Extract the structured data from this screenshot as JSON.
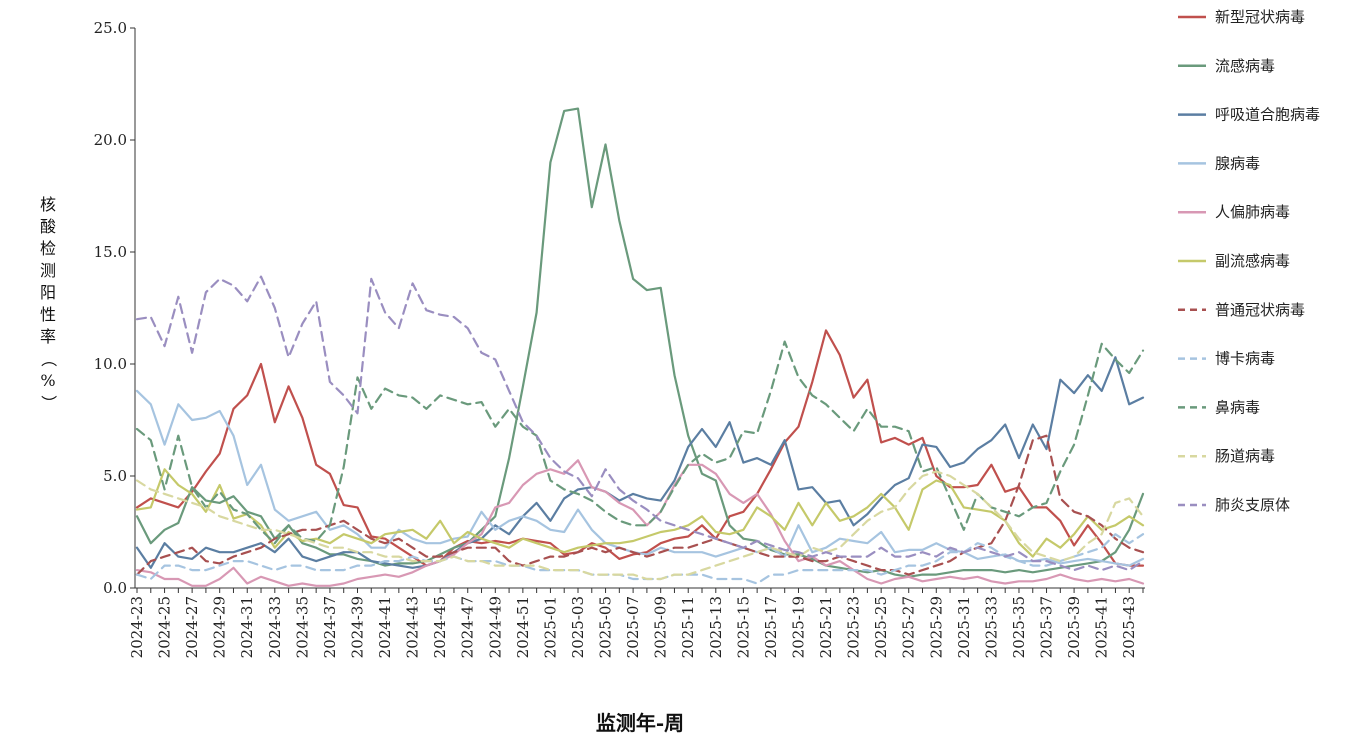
{
  "chart_data": {
    "type": "line",
    "xlabel": "监测年-周",
    "ylabel": "核酸检测阳性率（%）",
    "ylim": [
      0,
      25
    ],
    "yticks": [
      "0.0",
      "5.0",
      "10.0",
      "15.0",
      "20.0",
      "25.0"
    ],
    "legend_position": "right",
    "categories": [
      "2024-23",
      "2024-24",
      "2024-25",
      "2024-26",
      "2024-27",
      "2024-28",
      "2024-29",
      "2024-30",
      "2024-31",
      "2024-32",
      "2024-33",
      "2024-34",
      "2024-35",
      "2024-36",
      "2024-37",
      "2024-38",
      "2024-39",
      "2024-40",
      "2024-41",
      "2024-42",
      "2024-43",
      "2024-44",
      "2024-45",
      "2024-46",
      "2024-47",
      "2024-48",
      "2024-49",
      "2024-50",
      "2024-51",
      "2024-52",
      "2025-01",
      "2025-02",
      "2025-03",
      "2025-04",
      "2025-05",
      "2025-06",
      "2025-07",
      "2025-08",
      "2025-09",
      "2025-10",
      "2025-11",
      "2025-12",
      "2025-13",
      "2025-14",
      "2025-15",
      "2025-16",
      "2025-17",
      "2025-18",
      "2025-19",
      "2025-20",
      "2025-21",
      "2025-22",
      "2025-23",
      "2025-24",
      "2025-25",
      "2025-26",
      "2025-27",
      "2025-28",
      "2025-29",
      "2025-30",
      "2025-31",
      "2025-32",
      "2025-33",
      "2025-34",
      "2025-35",
      "2025-36",
      "2025-37",
      "2025-38",
      "2025-39",
      "2025-40",
      "2025-41",
      "2025-42",
      "2025-43",
      "2025-44"
    ],
    "xtick_labels": [
      "2024-23",
      "2024-25",
      "2024-27",
      "2024-29",
      "2024-31",
      "2024-33",
      "2024-35",
      "2024-37",
      "2024-39",
      "2024-41",
      "2024-43",
      "2024-45",
      "2024-47",
      "2024-49",
      "2024-51",
      "2025-01",
      "2025-03",
      "2025-05",
      "2025-07",
      "2025-09",
      "2025-11",
      "2025-13",
      "2025-15",
      "2025-17",
      "2025-19",
      "2025-21",
      "2025-23",
      "2025-25",
      "2025-27",
      "2025-29",
      "2025-31",
      "2025-33",
      "2025-35",
      "2025-37",
      "2025-39",
      "2025-41",
      "2025-43"
    ],
    "series": [
      {
        "name": "新型冠状病毒",
        "color": "#c0504d",
        "dash": false,
        "values": [
          3.6,
          4.0,
          3.8,
          3.6,
          4.3,
          5.2,
          6.0,
          8.0,
          8.6,
          10.0,
          7.4,
          9.0,
          7.6,
          5.5,
          5.1,
          3.7,
          3.6,
          2.3,
          2.2,
          1.8,
          1.4,
          1.0,
          1.2,
          1.8,
          2.1,
          2.0,
          2.1,
          2.0,
          2.2,
          2.1,
          2.0,
          1.5,
          1.6,
          2.0,
          1.8,
          1.3,
          1.5,
          1.6,
          2.0,
          2.2,
          2.3,
          2.8,
          2.2,
          3.2,
          3.4,
          4.2,
          5.3,
          6.5,
          7.2,
          9.2,
          11.5,
          10.4,
          8.5,
          9.3,
          6.5,
          6.7,
          6.4,
          6.7,
          5.0,
          4.5,
          4.5,
          4.6,
          5.5,
          4.3,
          4.5,
          3.6,
          3.6,
          3.0,
          1.9,
          2.8,
          2.0,
          1.1,
          1.0,
          1.0
        ]
      },
      {
        "name": "流感病毒",
        "color": "#6a9a7c",
        "dash": false,
        "values": [
          3.2,
          2.0,
          2.6,
          2.9,
          4.5,
          3.9,
          3.8,
          4.1,
          3.4,
          3.2,
          2.2,
          2.8,
          2.0,
          1.8,
          1.5,
          1.5,
          1.3,
          1.2,
          1.0,
          1.1,
          1.1,
          1.2,
          1.5,
          1.8,
          2.0,
          2.6,
          3.2,
          5.8,
          9.0,
          12.3,
          19.0,
          21.3,
          21.4,
          17.0,
          19.8,
          16.4,
          13.8,
          13.3,
          13.4,
          9.5,
          6.8,
          5.1,
          4.8,
          2.8,
          2.2,
          2.1,
          1.7,
          1.5,
          1.5,
          1.3,
          1.0,
          0.9,
          0.8,
          0.7,
          0.8,
          0.6,
          0.5,
          0.6,
          0.6,
          0.7,
          0.8,
          0.8,
          0.8,
          0.7,
          0.8,
          0.7,
          0.8,
          0.9,
          1.0,
          1.1,
          1.2,
          1.6,
          2.6,
          4.2
        ]
      },
      {
        "name": "呼吸道合胞病毒",
        "color": "#5b7ea2",
        "dash": false,
        "values": [
          1.8,
          0.9,
          2.0,
          1.4,
          1.3,
          1.8,
          1.6,
          1.6,
          1.8,
          2.0,
          1.6,
          2.2,
          1.4,
          1.2,
          1.4,
          1.6,
          1.6,
          1.2,
          1.1,
          1.0,
          0.9,
          1.0,
          1.2,
          1.6,
          2.0,
          2.2,
          2.8,
          2.4,
          3.2,
          3.8,
          3.0,
          4.0,
          4.4,
          4.5,
          4.3,
          3.9,
          4.2,
          4.0,
          3.9,
          4.8,
          6.3,
          7.1,
          6.3,
          7.4,
          5.6,
          5.8,
          5.5,
          6.6,
          4.4,
          4.5,
          3.8,
          3.9,
          2.8,
          3.3,
          4.0,
          4.6,
          4.9,
          6.4,
          6.3,
          5.4,
          5.6,
          6.2,
          6.6,
          7.3,
          5.8,
          7.3,
          6.2,
          9.3,
          8.7,
          9.5,
          8.8,
          10.3,
          8.2,
          8.5
        ]
      },
      {
        "name": "腺病毒",
        "color": "#a6c4e0",
        "dash": false,
        "values": [
          8.8,
          8.2,
          6.4,
          8.2,
          7.5,
          7.6,
          7.9,
          6.8,
          4.6,
          5.5,
          3.5,
          3.0,
          3.2,
          3.4,
          2.6,
          2.8,
          2.4,
          1.8,
          1.8,
          2.6,
          2.2,
          2.0,
          2.0,
          2.2,
          2.3,
          3.4,
          2.6,
          3.0,
          3.2,
          3.0,
          2.6,
          2.5,
          3.5,
          2.6,
          2.0,
          1.8,
          1.6,
          1.5,
          1.8,
          1.6,
          1.6,
          1.6,
          1.4,
          1.6,
          1.8,
          1.6,
          1.8,
          1.4,
          2.8,
          1.6,
          1.8,
          2.2,
          2.1,
          2.0,
          2.5,
          1.6,
          1.7,
          1.7,
          2.0,
          1.7,
          1.6,
          1.3,
          1.4,
          1.5,
          1.2,
          1.2,
          1.3,
          1.1,
          1.2,
          1.3,
          1.2,
          1.1,
          1.0,
          1.3
        ]
      },
      {
        "name": "人偏肺病毒",
        "color": "#d898b4",
        "dash": false,
        "values": [
          0.8,
          0.7,
          0.4,
          0.4,
          0.1,
          0.1,
          0.4,
          0.9,
          0.2,
          0.5,
          0.3,
          0.1,
          0.2,
          0.1,
          0.1,
          0.2,
          0.4,
          0.5,
          0.6,
          0.5,
          0.7,
          1.0,
          1.2,
          1.5,
          2.0,
          2.4,
          3.6,
          3.8,
          4.6,
          5.1,
          5.3,
          5.1,
          5.7,
          4.5,
          4.3,
          3.8,
          3.5,
          2.8,
          3.4,
          4.6,
          5.5,
          5.5,
          5.1,
          4.2,
          3.8,
          4.2,
          3.3,
          2.1,
          1.2,
          1.4,
          1.0,
          1.2,
          0.8,
          0.4,
          0.2,
          0.4,
          0.5,
          0.3,
          0.4,
          0.5,
          0.4,
          0.5,
          0.3,
          0.2,
          0.3,
          0.3,
          0.4,
          0.6,
          0.4,
          0.3,
          0.4,
          0.3,
          0.4,
          0.2
        ]
      },
      {
        "name": "副流感病毒",
        "color": "#c5c96a",
        "dash": false,
        "values": [
          3.5,
          3.6,
          5.3,
          4.6,
          4.2,
          3.4,
          4.6,
          3.1,
          3.3,
          2.8,
          1.8,
          2.5,
          2.1,
          2.2,
          2.0,
          2.4,
          2.2,
          2.0,
          2.4,
          2.5,
          2.6,
          2.2,
          3.0,
          2.0,
          2.5,
          2.2,
          2.0,
          1.8,
          2.2,
          2.0,
          1.8,
          1.6,
          1.8,
          1.9,
          2.0,
          2.0,
          2.1,
          2.3,
          2.5,
          2.6,
          2.8,
          3.2,
          2.5,
          2.4,
          2.6,
          3.6,
          3.2,
          2.6,
          3.8,
          2.8,
          3.8,
          3.0,
          3.2,
          3.6,
          4.2,
          3.6,
          2.6,
          4.4,
          4.8,
          4.6,
          3.6,
          3.5,
          3.4,
          3.0,
          2.0,
          1.4,
          2.2,
          1.8,
          2.4,
          3.2,
          2.6,
          2.8,
          3.2,
          2.8
        ]
      },
      {
        "name": "普通冠状病毒",
        "color": "#a85050",
        "dash": true,
        "values": [
          0.6,
          1.2,
          1.4,
          1.6,
          1.8,
          1.2,
          1.1,
          1.4,
          1.6,
          1.8,
          2.2,
          2.4,
          2.6,
          2.6,
          2.8,
          3.0,
          2.6,
          2.2,
          2.0,
          2.2,
          1.8,
          1.4,
          1.4,
          1.6,
          1.8,
          1.8,
          1.8,
          1.2,
          1.0,
          1.2,
          1.4,
          1.4,
          1.6,
          1.8,
          1.6,
          1.8,
          1.6,
          1.4,
          1.6,
          1.8,
          1.8,
          2.0,
          2.2,
          2.0,
          1.8,
          1.6,
          1.4,
          1.4,
          1.4,
          1.2,
          1.2,
          1.4,
          1.2,
          1.0,
          0.8,
          0.8,
          0.6,
          0.8,
          1.0,
          1.2,
          1.6,
          1.8,
          2.0,
          3.0,
          4.6,
          6.6,
          6.8,
          4.0,
          3.4,
          3.2,
          2.8,
          2.2,
          1.8,
          1.6
        ]
      },
      {
        "name": "博卡病毒",
        "color": "#a6c4e0",
        "dash": true,
        "values": [
          0.6,
          0.4,
          1.0,
          1.0,
          0.8,
          0.8,
          1.0,
          1.2,
          1.2,
          1.0,
          0.8,
          1.0,
          1.0,
          0.8,
          0.8,
          0.8,
          1.0,
          1.0,
          1.2,
          1.2,
          1.4,
          1.2,
          1.2,
          1.4,
          1.2,
          1.2,
          1.2,
          1.0,
          1.0,
          0.8,
          0.8,
          0.8,
          0.8,
          0.6,
          0.6,
          0.6,
          0.4,
          0.4,
          0.4,
          0.6,
          0.6,
          0.6,
          0.4,
          0.4,
          0.4,
          0.2,
          0.6,
          0.6,
          0.8,
          0.8,
          0.8,
          0.8,
          0.8,
          0.8,
          0.6,
          0.8,
          1.0,
          1.0,
          1.2,
          1.6,
          1.6,
          2.0,
          1.8,
          1.4,
          1.2,
          1.0,
          1.0,
          1.2,
          1.4,
          1.6,
          1.8,
          2.4,
          2.0,
          2.4
        ]
      },
      {
        "name": "鼻病毒",
        "color": "#6a9a7c",
        "dash": true,
        "values": [
          7.1,
          6.6,
          4.4,
          6.8,
          4.5,
          3.6,
          4.3,
          3.5,
          3.3,
          2.6,
          2.0,
          2.8,
          2.2,
          2.1,
          2.8,
          5.4,
          9.4,
          8.0,
          8.9,
          8.6,
          8.5,
          8.0,
          8.6,
          8.4,
          8.2,
          8.3,
          7.2,
          8.0,
          7.2,
          6.8,
          4.8,
          4.4,
          4.2,
          3.9,
          3.4,
          3.0,
          2.8,
          2.8,
          3.4,
          4.5,
          5.5,
          6.0,
          5.6,
          5.8,
          7.0,
          6.9,
          8.8,
          11.0,
          9.4,
          8.6,
          8.2,
          7.6,
          7.0,
          8.0,
          7.2,
          7.2,
          7.0,
          5.2,
          5.4,
          4.0,
          2.6,
          4.2,
          3.6,
          3.4,
          3.2,
          3.6,
          3.8,
          5.2,
          6.4,
          8.6,
          10.9,
          10.2,
          9.6,
          10.6
        ]
      },
      {
        "name": "肠道病毒",
        "color": "#d8d8a0",
        "dash": true,
        "values": [
          4.8,
          4.4,
          4.2,
          4.0,
          3.8,
          3.6,
          3.2,
          3.0,
          2.8,
          2.6,
          2.6,
          2.4,
          2.2,
          2.0,
          1.8,
          1.8,
          1.6,
          1.6,
          1.4,
          1.4,
          1.2,
          1.2,
          1.2,
          1.4,
          1.2,
          1.2,
          1.0,
          1.0,
          1.0,
          1.0,
          0.8,
          0.8,
          0.8,
          0.6,
          0.6,
          0.6,
          0.6,
          0.4,
          0.4,
          0.6,
          0.6,
          0.8,
          1.0,
          1.2,
          1.4,
          1.6,
          1.8,
          1.6,
          1.4,
          1.8,
          1.6,
          1.8,
          2.4,
          3.0,
          3.4,
          3.6,
          4.4,
          5.0,
          5.2,
          5.0,
          4.6,
          4.2,
          3.6,
          3.0,
          2.2,
          1.6,
          1.4,
          1.2,
          1.4,
          2.0,
          2.4,
          3.8,
          4.0,
          3.2
        ]
      },
      {
        "name": "肺炎支原体",
        "color": "#9a8ec0",
        "dash": true,
        "values": [
          12.0,
          12.1,
          10.8,
          13.0,
          10.5,
          13.2,
          13.8,
          13.5,
          12.8,
          13.9,
          12.5,
          10.3,
          11.8,
          12.8,
          9.2,
          8.6,
          7.8,
          13.8,
          12.3,
          11.6,
          13.6,
          12.4,
          12.2,
          12.1,
          11.6,
          10.5,
          10.2,
          8.8,
          7.4,
          6.8,
          5.8,
          5.2,
          4.9,
          4.1,
          5.3,
          4.4,
          3.9,
          3.5,
          3.0,
          2.8,
          2.6,
          2.4,
          2.2,
          2.0,
          1.8,
          2.1,
          1.9,
          1.7,
          1.6,
          1.4,
          1.6,
          1.4,
          1.4,
          1.4,
          1.8,
          1.4,
          1.4,
          1.6,
          1.4,
          1.8,
          1.6,
          1.8,
          1.6,
          1.4,
          1.6,
          1.2,
          1.2,
          1.0,
          0.8,
          1.0,
          0.8,
          1.0,
          0.8,
          1.2
        ]
      }
    ]
  }
}
